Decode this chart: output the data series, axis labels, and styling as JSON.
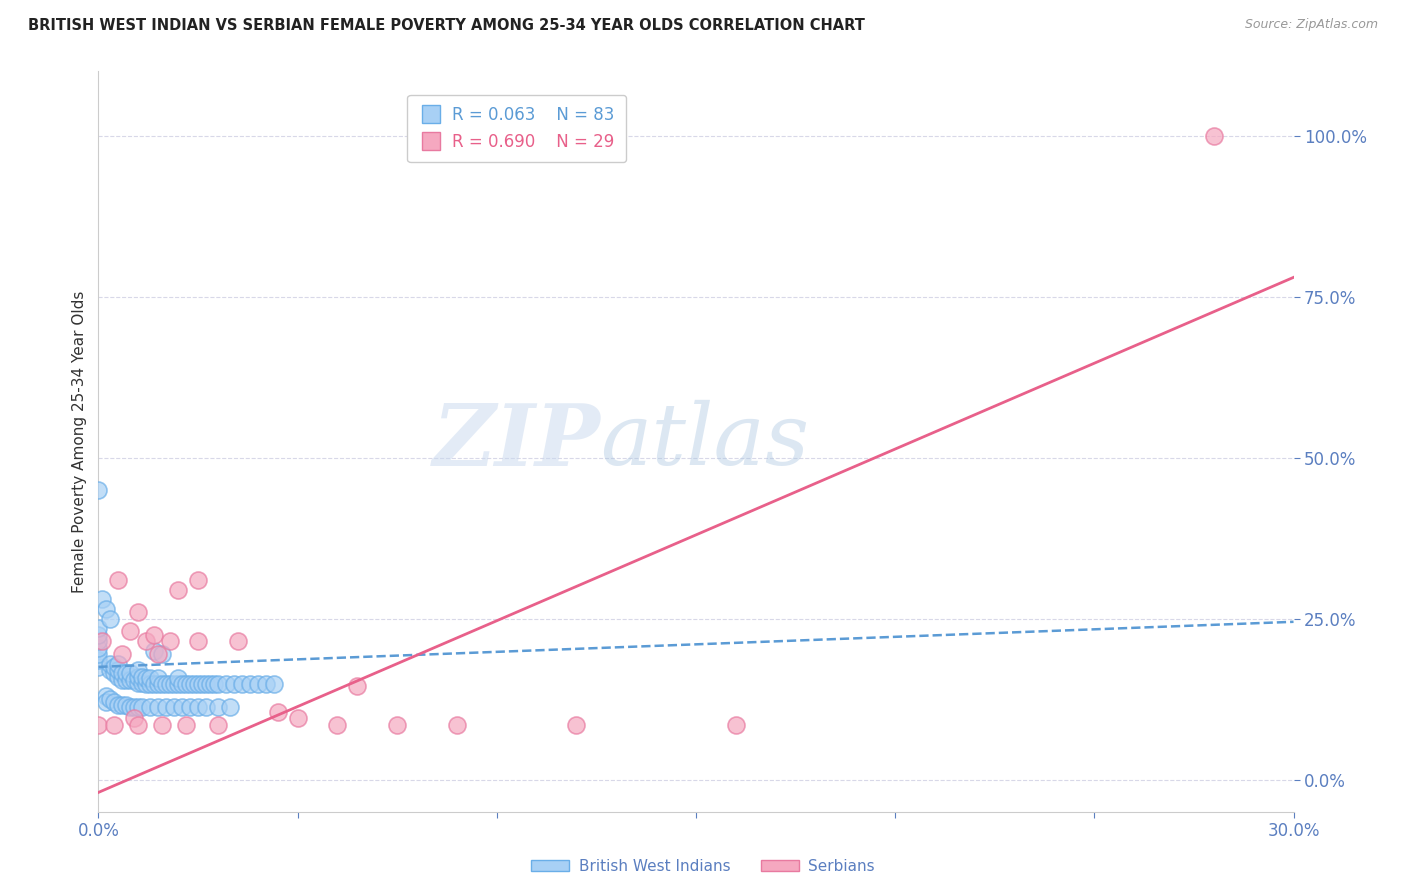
{
  "title": "BRITISH WEST INDIAN VS SERBIAN FEMALE POVERTY AMONG 25-34 YEAR OLDS CORRELATION CHART",
  "source": "Source: ZipAtlas.com",
  "ylabel": "Female Poverty Among 25-34 Year Olds",
  "xlim": [
    0.0,
    0.3
  ],
  "ylim": [
    -0.05,
    1.1
  ],
  "yticks": [
    0.0,
    0.25,
    0.5,
    0.75,
    1.0
  ],
  "ytick_labels": [
    "0.0%",
    "25.0%",
    "50.0%",
    "75.0%",
    "100.0%"
  ],
  "xticks": [
    0.0,
    0.05,
    0.1,
    0.15,
    0.2,
    0.25,
    0.3
  ],
  "xtick_labels": [
    "0.0%",
    "",
    "",
    "",
    "",
    "",
    "30.0%"
  ],
  "blue_color": "#a8d0f5",
  "pink_color": "#f5a8c0",
  "blue_edge_color": "#6aaee8",
  "pink_edge_color": "#e87aa0",
  "blue_line_color": "#5b9bd5",
  "pink_line_color": "#e8608a",
  "tick_color": "#5b7fc0",
  "grid_color": "#d8d8e8",
  "watermark_zip": "ZIP",
  "watermark_atlas": "atlas",
  "legend_R_blue": "R = 0.063",
  "legend_N_blue": "N = 83",
  "legend_R_pink": "R = 0.690",
  "legend_N_pink": "N = 29",
  "legend_label_blue": "British West Indians",
  "legend_label_pink": "Serbians",
  "blue_scatter_x": [
    0.0,
    0.0,
    0.0,
    0.0,
    0.0,
    0.0,
    0.0,
    0.003,
    0.003,
    0.004,
    0.004,
    0.005,
    0.005,
    0.005,
    0.006,
    0.006,
    0.007,
    0.007,
    0.008,
    0.008,
    0.009,
    0.01,
    0.01,
    0.01,
    0.011,
    0.011,
    0.012,
    0.012,
    0.013,
    0.013,
    0.014,
    0.015,
    0.015,
    0.016,
    0.017,
    0.018,
    0.019,
    0.02,
    0.02,
    0.021,
    0.022,
    0.023,
    0.024,
    0.025,
    0.026,
    0.027,
    0.028,
    0.029,
    0.03,
    0.032,
    0.034,
    0.036,
    0.038,
    0.04,
    0.042,
    0.044,
    0.002,
    0.002,
    0.003,
    0.004,
    0.005,
    0.006,
    0.007,
    0.008,
    0.009,
    0.01,
    0.011,
    0.013,
    0.015,
    0.017,
    0.019,
    0.021,
    0.023,
    0.025,
    0.027,
    0.03,
    0.033,
    0.0,
    0.001,
    0.002,
    0.003,
    0.014,
    0.016
  ],
  "blue_scatter_y": [
    0.175,
    0.185,
    0.195,
    0.205,
    0.215,
    0.225,
    0.235,
    0.17,
    0.18,
    0.165,
    0.175,
    0.16,
    0.17,
    0.18,
    0.155,
    0.165,
    0.155,
    0.165,
    0.155,
    0.165,
    0.155,
    0.15,
    0.16,
    0.17,
    0.15,
    0.16,
    0.148,
    0.158,
    0.148,
    0.158,
    0.148,
    0.148,
    0.158,
    0.148,
    0.148,
    0.148,
    0.148,
    0.148,
    0.158,
    0.148,
    0.148,
    0.148,
    0.148,
    0.148,
    0.148,
    0.148,
    0.148,
    0.148,
    0.148,
    0.148,
    0.148,
    0.148,
    0.148,
    0.148,
    0.148,
    0.148,
    0.13,
    0.12,
    0.125,
    0.12,
    0.115,
    0.115,
    0.115,
    0.112,
    0.112,
    0.112,
    0.112,
    0.112,
    0.112,
    0.112,
    0.112,
    0.112,
    0.112,
    0.112,
    0.112,
    0.112,
    0.112,
    0.45,
    0.28,
    0.265,
    0.25,
    0.2,
    0.195
  ],
  "pink_scatter_x": [
    0.0,
    0.001,
    0.004,
    0.006,
    0.008,
    0.009,
    0.01,
    0.012,
    0.014,
    0.016,
    0.018,
    0.02,
    0.022,
    0.025,
    0.03,
    0.035,
    0.045,
    0.05,
    0.06,
    0.065,
    0.075,
    0.09,
    0.12,
    0.16,
    0.005,
    0.015,
    0.025,
    0.28,
    0.01
  ],
  "pink_scatter_y": [
    0.085,
    0.215,
    0.085,
    0.195,
    0.23,
    0.095,
    0.085,
    0.215,
    0.225,
    0.085,
    0.215,
    0.295,
    0.085,
    0.215,
    0.085,
    0.215,
    0.105,
    0.095,
    0.085,
    0.145,
    0.085,
    0.085,
    0.085,
    0.085,
    0.31,
    0.195,
    0.31,
    1.0,
    0.26
  ],
  "blue_trend_x": [
    0.0,
    0.3
  ],
  "blue_trend_y": [
    0.175,
    0.245
  ],
  "pink_trend_x": [
    0.0,
    0.3
  ],
  "pink_trend_y": [
    -0.02,
    0.78
  ]
}
